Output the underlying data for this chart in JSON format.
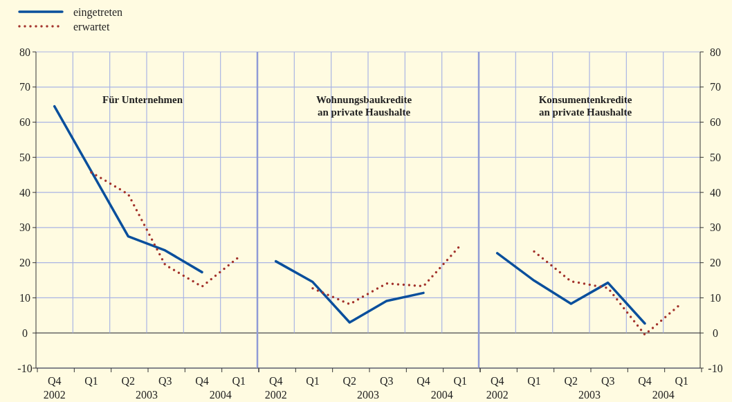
{
  "chart_data": [
    {
      "type": "line",
      "title": "Für Unternehmen",
      "categories": [
        "Q4",
        "Q1",
        "Q2",
        "Q3",
        "Q4",
        "Q1"
      ],
      "ylim": [
        -10,
        80
      ],
      "yticks": [
        -10,
        0,
        10,
        20,
        30,
        40,
        50,
        60,
        70,
        80
      ],
      "grid": true,
      "legend": "top left",
      "annotations": [
        "2002",
        "2003",
        "2004"
      ],
      "series": [
        {
          "name": "eingetreten",
          "color": "#0a4f9c",
          "line_style": "solid",
          "values": [
            64.5,
            46,
            27.5,
            23.5,
            17.3,
            null
          ]
        },
        {
          "name": "erwartet",
          "color": "#a3332c",
          "line_style": "dotted",
          "values": [
            null,
            45.7,
            39.5,
            19.4,
            13.2,
            21.6
          ]
        }
      ]
    },
    {
      "type": "line",
      "title": "Wohnungsbaukredite\nan private Haushalte",
      "categories": [
        "Q4",
        "Q1",
        "Q2",
        "Q3",
        "Q4",
        "Q1"
      ],
      "ylim": [
        -10,
        80
      ],
      "yticks": [
        -10,
        0,
        10,
        20,
        30,
        40,
        50,
        60,
        70,
        80
      ],
      "grid": true,
      "tick_labels": "x",
      "annotations": [
        "2002",
        "2003",
        "2004"
      ],
      "series": [
        {
          "color": "#0a4f9c",
          "line_style": "solid",
          "values": [
            20.4,
            14.5,
            3.0,
            9.1,
            11.4,
            null
          ]
        },
        {
          "color": "#a3332c",
          "line_style": "dotted",
          "values": [
            null,
            12.7,
            8.2,
            14.1,
            13.3,
            24.9
          ]
        }
      ]
    },
    {
      "type": "line",
      "title": "Konsumentenkredite\nan private Haushalte",
      "categories": [
        "Q4",
        "Q1",
        "Q2",
        "Q3",
        "Q4",
        "Q1"
      ],
      "ylim": [
        -10,
        80
      ],
      "yticks": [
        -10,
        0,
        10,
        20,
        30,
        40,
        50,
        60,
        70,
        80
      ],
      "grid": true,
      "annotations": [
        "2002",
        "2003",
        "2004"
      ],
      "series": [
        {
          "color": "#0a4f9c",
          "line_style": "solid",
          "values": [
            22.7,
            14.9,
            8.3,
            14.3,
            2.7,
            null
          ]
        },
        {
          "color": "#a3332c",
          "line_style": "dotted",
          "values": [
            null,
            23.2,
            14.7,
            12.8,
            -0.5,
            8.5
          ]
        }
      ]
    }
  ]
}
